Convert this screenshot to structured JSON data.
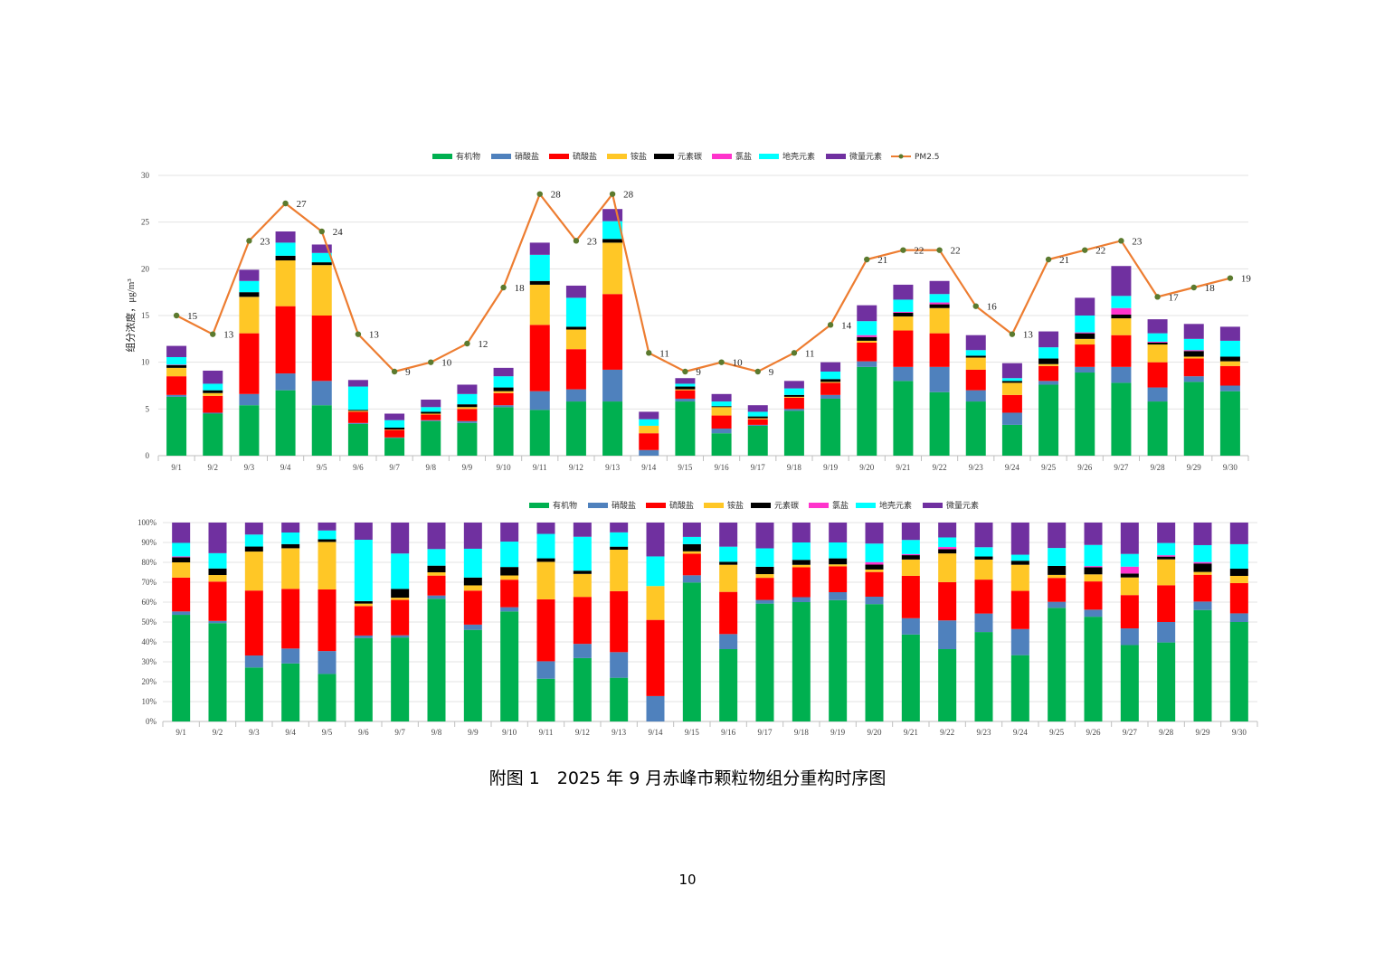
{
  "caption": "附图 1　2025 年 9 月赤峰市颗粒物组分重构时序图",
  "page_number": "10",
  "chart_data": [
    {
      "type": "bar",
      "stacking": "normal",
      "title": "",
      "xlabel": "",
      "ylabel": "组分浓度，μg/m³",
      "ylim": [
        0,
        30
      ],
      "yticks": [
        "0",
        "5",
        "10",
        "15",
        "20",
        "25",
        "30"
      ],
      "grid": true,
      "legend_position": "top",
      "categories": [
        "9/1",
        "9/2",
        "9/3",
        "9/4",
        "9/5",
        "9/6",
        "9/7",
        "9/8",
        "9/9",
        "9/10",
        "9/11",
        "9/12",
        "9/13",
        "9/14",
        "9/15",
        "9/16",
        "9/17",
        "9/18",
        "9/19",
        "9/20",
        "9/21",
        "9/22",
        "9/23",
        "9/24",
        "9/25",
        "9/26",
        "9/27",
        "9/28",
        "9/29",
        "9/30"
      ],
      "series": [
        {
          "name": "有机物",
          "color": "#00b050",
          "values": [
            6.3,
            4.5,
            5.4,
            7.0,
            5.4,
            3.4,
            1.9,
            3.7,
            3.5,
            5.2,
            4.9,
            5.8,
            5.8,
            0,
            5.8,
            2.4,
            3.2,
            4.8,
            6.1,
            9.5,
            8.0,
            6.8,
            5.8,
            3.3,
            7.6,
            8.9,
            7.8,
            5.8,
            7.9,
            6.9
          ]
        },
        {
          "name": "硝酸盐",
          "color": "#4f81bd",
          "values": [
            0.2,
            0.1,
            1.2,
            1.8,
            2.6,
            0.1,
            0.05,
            0.1,
            0.2,
            0.2,
            2.0,
            1.3,
            3.4,
            0.6,
            0.3,
            0.5,
            0.1,
            0.2,
            0.4,
            0.6,
            1.5,
            2.7,
            1.2,
            1.3,
            0.4,
            0.6,
            1.7,
            1.5,
            0.6,
            0.6
          ]
        },
        {
          "name": "硫酸盐",
          "color": "#ff0000",
          "values": [
            2.0,
            1.8,
            6.5,
            7.2,
            7.0,
            1.2,
            0.8,
            0.6,
            1.3,
            1.3,
            7.1,
            4.3,
            8.1,
            1.8,
            0.9,
            1.4,
            0.6,
            1.2,
            1.3,
            2.0,
            3.9,
            3.6,
            2.2,
            1.9,
            1.6,
            2.4,
            3.4,
            2.7,
            1.9,
            2.1
          ]
        },
        {
          "name": "铵盐",
          "color": "#ffc726",
          "values": [
            0.9,
            0.3,
            3.9,
            4.9,
            5.4,
            0.1,
            0.05,
            0.1,
            0.2,
            0.2,
            4.3,
            2.1,
            5.5,
            0.8,
            0.1,
            0.9,
            0.1,
            0.1,
            0.1,
            0.2,
            1.5,
            2.7,
            1.3,
            1.3,
            0.2,
            0.6,
            1.8,
            1.9,
            0.2,
            0.5
          ]
        },
        {
          "name": "元素碳",
          "color": "#000000",
          "values": [
            0.3,
            0.3,
            0.5,
            0.5,
            0.3,
            0.1,
            0.2,
            0.2,
            0.3,
            0.4,
            0.4,
            0.3,
            0.4,
            0,
            0.3,
            0.1,
            0.2,
            0.2,
            0.3,
            0.4,
            0.4,
            0.4,
            0.2,
            0.2,
            0.6,
            0.6,
            0.4,
            0.2,
            0.6,
            0.5
          ]
        },
        {
          "name": "氯盐",
          "color": "#ff33cc",
          "values": [
            0.05,
            0,
            0,
            0,
            0,
            0,
            0,
            0,
            0,
            0,
            0,
            0,
            0,
            0,
            0,
            0,
            0,
            0,
            0,
            0.2,
            0.1,
            0.2,
            0,
            0,
            0,
            0.1,
            0.7,
            0.1,
            0.1,
            0
          ]
        },
        {
          "name": "地壳元素",
          "color": "#00ffff",
          "values": [
            0.8,
            0.7,
            1.2,
            1.4,
            1.0,
            2.5,
            0.8,
            0.5,
            1.1,
            1.2,
            2.8,
            3.1,
            1.9,
            0.7,
            0.3,
            0.5,
            0.5,
            0.7,
            0.8,
            1.5,
            1.3,
            0.9,
            0.6,
            0.3,
            1.2,
            1.8,
            1.3,
            0.9,
            1.2,
            1.7
          ]
        },
        {
          "name": "微量元素",
          "color": "#7030a0",
          "values": [
            1.2,
            1.4,
            1.2,
            1.2,
            0.9,
            0.7,
            0.7,
            0.8,
            1.0,
            0.9,
            1.3,
            1.3,
            1.3,
            0.8,
            0.6,
            0.8,
            0.7,
            0.8,
            1.0,
            1.7,
            1.6,
            1.4,
            1.6,
            1.6,
            1.7,
            1.9,
            3.2,
            1.5,
            1.6,
            1.5
          ]
        }
      ],
      "line_series": {
        "name": "PM2.5",
        "color": "#ed7d31",
        "marker_color": "#5b7a2e",
        "values": [
          15,
          13,
          23,
          27,
          24,
          13,
          9,
          10,
          12,
          18,
          28,
          23,
          28,
          11,
          9,
          10,
          9,
          11,
          14,
          21,
          22,
          22,
          16,
          13,
          21,
          22,
          23,
          17,
          18,
          19
        ]
      }
    },
    {
      "type": "bar",
      "stacking": "percent",
      "title": "",
      "xlabel": "",
      "ylabel": "",
      "ylim": [
        0,
        100
      ],
      "yticks": [
        "0%",
        "10%",
        "20%",
        "30%",
        "40%",
        "50%",
        "60%",
        "70%",
        "80%",
        "90%",
        "100%"
      ],
      "grid": true,
      "legend_position": "top",
      "note": "series shares = each component / daily total of chart 1",
      "categories_ref": "chart_data.0.categories",
      "series_ref": "chart_data.0.series"
    }
  ]
}
